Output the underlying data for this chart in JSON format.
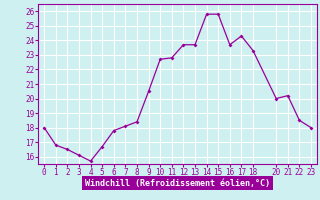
{
  "x": [
    0,
    1,
    2,
    3,
    4,
    5,
    6,
    7,
    8,
    9,
    10,
    11,
    12,
    13,
    14,
    15,
    16,
    17,
    18,
    20,
    21,
    22,
    23
  ],
  "y": [
    18.0,
    16.8,
    16.5,
    16.1,
    15.7,
    16.7,
    17.8,
    18.1,
    18.4,
    20.5,
    22.7,
    22.8,
    23.7,
    23.7,
    25.8,
    25.8,
    23.7,
    24.3,
    23.3,
    20.0,
    20.2,
    18.5,
    18.0
  ],
  "line_color": "#990099",
  "marker": "D",
  "marker_size": 2,
  "bg_color": "#cff0f0",
  "grid_color": "#ffffff",
  "xlabel": "Windchill (Refroidissement éolien,°C)",
  "xlim": [
    -0.5,
    23.5
  ],
  "ylim": [
    15.5,
    26.5
  ],
  "yticks": [
    16,
    17,
    18,
    19,
    20,
    21,
    22,
    23,
    24,
    25,
    26
  ],
  "xticks": [
    0,
    1,
    2,
    3,
    4,
    5,
    6,
    7,
    8,
    9,
    10,
    11,
    12,
    13,
    14,
    15,
    16,
    17,
    18,
    20,
    21,
    22,
    23
  ],
  "tick_fontsize": 5.5,
  "xlabel_fontsize": 6.0,
  "xlabel_color": "#ffffff",
  "xlabel_bg": "#990099"
}
